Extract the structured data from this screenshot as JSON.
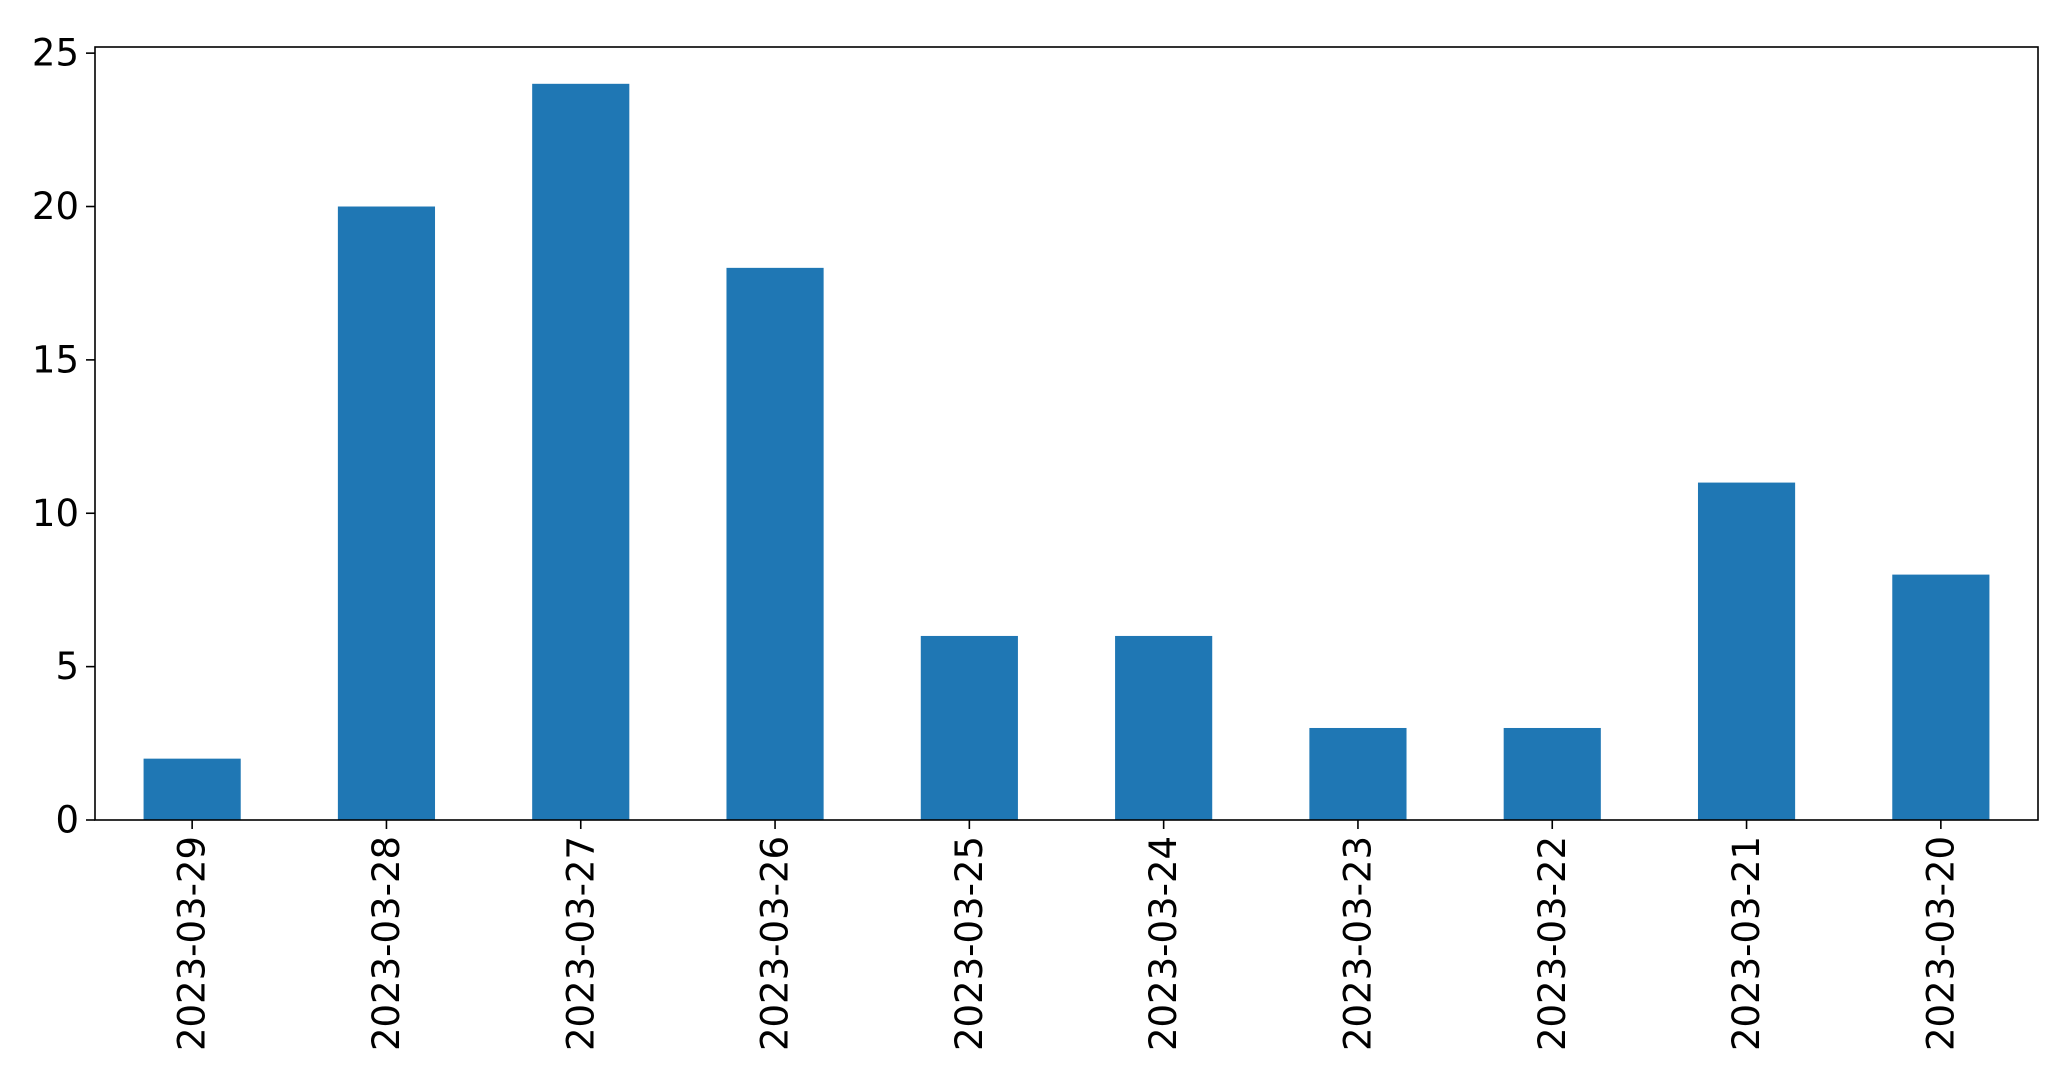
{
  "chart_data": {
    "type": "bar",
    "title": "",
    "xlabel": "",
    "ylabel": "",
    "categories": [
      "2023-03-29",
      "2023-03-28",
      "2023-03-27",
      "2023-03-26",
      "2023-03-25",
      "2023-03-24",
      "2023-03-23",
      "2023-03-22",
      "2023-03-21",
      "2023-03-20"
    ],
    "values": [
      2,
      20,
      24,
      18,
      6,
      6,
      3,
      3,
      11,
      8
    ],
    "ylim": [
      0,
      25.2
    ],
    "yticks": [
      0,
      5,
      10,
      15,
      20,
      25
    ],
    "bar_color": "#1f77b4",
    "grid": false,
    "legend": "none"
  }
}
